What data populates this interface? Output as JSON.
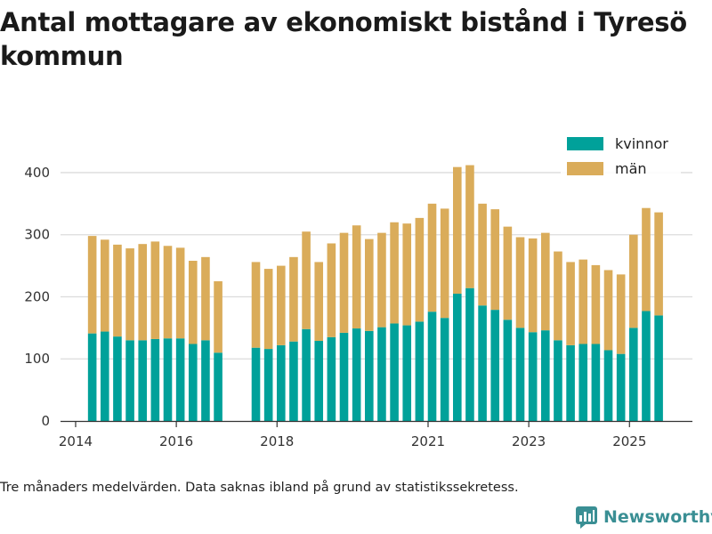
{
  "title": "Antal mottagare av ekonomiskt bistånd i Tyresö kommun",
  "footnote": "Tre månaders medelvärden. Data saknas ibland på grund av statistikssekretess.",
  "brand": {
    "name": "Newsworthy",
    "icon": "newsworthy-logo-icon",
    "color": "#3a8f94"
  },
  "chart_data": {
    "type": "bar",
    "stacked": true,
    "title": "Antal mottagare av ekonomiskt bistånd i Tyresö kommun",
    "xlabel": "",
    "ylabel": "",
    "ylim": [
      0,
      420
    ],
    "yticks": [
      0,
      100,
      200,
      300,
      400
    ],
    "xticks": [
      {
        "label": "2014",
        "x": 2014.0
      },
      {
        "label": "2016",
        "x": 2016.0
      },
      {
        "label": "2018",
        "x": 2018.0
      },
      {
        "label": "2021",
        "x": 2021.0
      },
      {
        "label": "2023",
        "x": 2023.0
      },
      {
        "label": "2025",
        "x": 2025.0
      }
    ],
    "xlim": [
      2013.7,
      2026.25
    ],
    "grid": true,
    "legend_position": "top-right",
    "colors": {
      "kvinnor": "#00a19a",
      "man": "#daac5a"
    },
    "x": [
      2014.33,
      2014.58,
      2014.83,
      2015.08,
      2015.33,
      2015.58,
      2015.83,
      2016.08,
      2016.33,
      2016.58,
      2016.83,
      2017.58,
      2017.83,
      2018.08,
      2018.33,
      2018.58,
      2018.83,
      2019.08,
      2019.33,
      2019.58,
      2019.83,
      2020.08,
      2020.33,
      2020.58,
      2020.83,
      2021.08,
      2021.33,
      2021.58,
      2021.83,
      2022.08,
      2022.33,
      2022.58,
      2022.83,
      2023.08,
      2023.33,
      2023.58,
      2023.83,
      2024.08,
      2024.33,
      2024.58,
      2024.83,
      2025.08,
      2025.33,
      2025.58
    ],
    "series": [
      {
        "name": "kvinnor",
        "values": [
          141,
          144,
          136,
          130,
          130,
          132,
          133,
          133,
          124,
          130,
          110,
          118,
          116,
          122,
          128,
          148,
          129,
          135,
          142,
          149,
          145,
          151,
          157,
          154,
          160,
          176,
          166,
          205,
          214,
          186,
          179,
          163,
          150,
          143,
          146,
          130,
          122,
          124,
          124,
          114,
          108,
          150,
          177,
          170
        ]
      },
      {
        "name": "män",
        "values": [
          157,
          148,
          148,
          148,
          155,
          157,
          149,
          146,
          134,
          134,
          115,
          138,
          129,
          128,
          136,
          157,
          127,
          151,
          161,
          166,
          148,
          152,
          163,
          164,
          167,
          174,
          176,
          204,
          198,
          164,
          162,
          150,
          146,
          151,
          157,
          143,
          134,
          136,
          127,
          129,
          128,
          150,
          166,
          166
        ]
      }
    ]
  }
}
